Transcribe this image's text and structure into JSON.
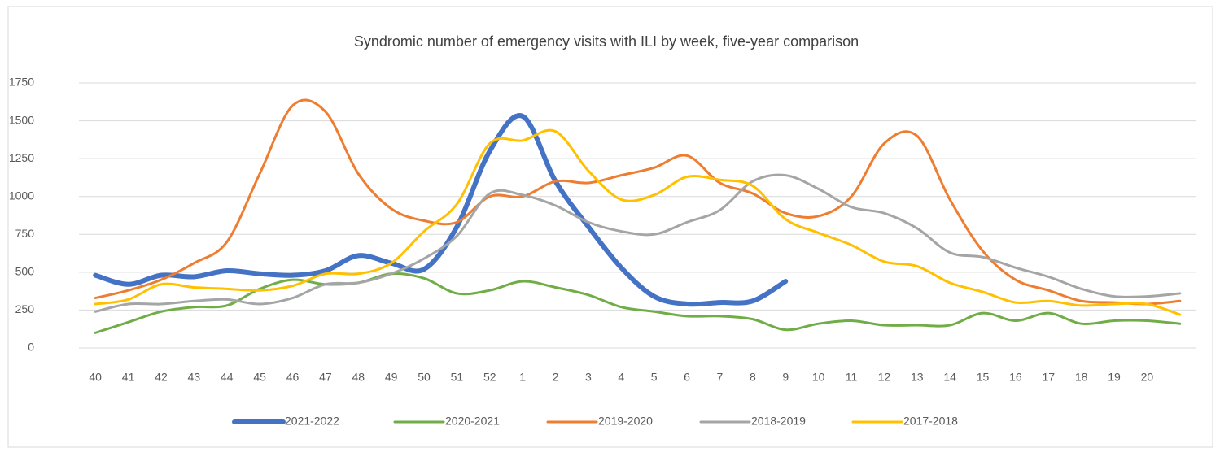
{
  "chart_data": {
    "type": "line",
    "title": "Syndromic number of emergency visits with ILI by week, five-year comparison",
    "categories": [
      "40",
      "41",
      "42",
      "43",
      "44",
      "45",
      "46",
      "47",
      "48",
      "49",
      "50",
      "51",
      "52",
      "1",
      "2",
      "3",
      "4",
      "5",
      "6",
      "7",
      "8",
      "9",
      "10",
      "11",
      "12",
      "13",
      "14",
      "15",
      "16",
      "17",
      "18",
      "19",
      "20",
      null
    ],
    "ylim": [
      0,
      1750
    ],
    "yticks": [
      0,
      250,
      500,
      750,
      1000,
      1250,
      1500,
      1750
    ],
    "grid": true,
    "legend": "bottom",
    "series": [
      {
        "name": "2021-2022",
        "color": "#4472c4",
        "values": [
          480,
          420,
          480,
          470,
          510,
          490,
          480,
          510,
          610,
          560,
          520,
          800,
          1300,
          1530,
          1100,
          800,
          530,
          340,
          290,
          300,
          310,
          440,
          null,
          null,
          null,
          null,
          null,
          null,
          null,
          null,
          null,
          null,
          null,
          null
        ]
      },
      {
        "name": "2020-2021",
        "color": "#70ad47",
        "values": [
          100,
          170,
          240,
          270,
          280,
          390,
          450,
          420,
          430,
          490,
          460,
          360,
          380,
          440,
          400,
          350,
          270,
          240,
          210,
          210,
          190,
          120,
          160,
          180,
          150,
          150,
          150,
          230,
          180,
          230,
          160,
          180,
          180,
          160
        ]
      },
      {
        "name": "2019-2020",
        "color": "#ed7d31",
        "values": [
          330,
          380,
          450,
          560,
          700,
          1150,
          1600,
          1560,
          1150,
          920,
          840,
          830,
          1000,
          1000,
          1100,
          1090,
          1140,
          1190,
          1270,
          1090,
          1020,
          890,
          870,
          1000,
          1350,
          1400,
          980,
          640,
          450,
          380,
          310,
          300,
          290,
          310
        ]
      },
      {
        "name": "2018-2019",
        "color": "#a5a5a5",
        "values": [
          240,
          290,
          290,
          310,
          320,
          290,
          330,
          420,
          430,
          490,
          590,
          740,
          1020,
          1010,
          940,
          830,
          770,
          750,
          830,
          910,
          1100,
          1140,
          1050,
          930,
          890,
          790,
          630,
          600,
          530,
          470,
          390,
          340,
          340,
          360
        ]
      },
      {
        "name": "2017-2018",
        "color": "#ffc000",
        "values": [
          290,
          320,
          420,
          400,
          390,
          380,
          410,
          490,
          490,
          560,
          770,
          950,
          1350,
          1370,
          1430,
          1170,
          980,
          1010,
          1130,
          1110,
          1070,
          850,
          760,
          680,
          570,
          540,
          430,
          370,
          300,
          310,
          280,
          290,
          290,
          220
        ]
      }
    ]
  }
}
